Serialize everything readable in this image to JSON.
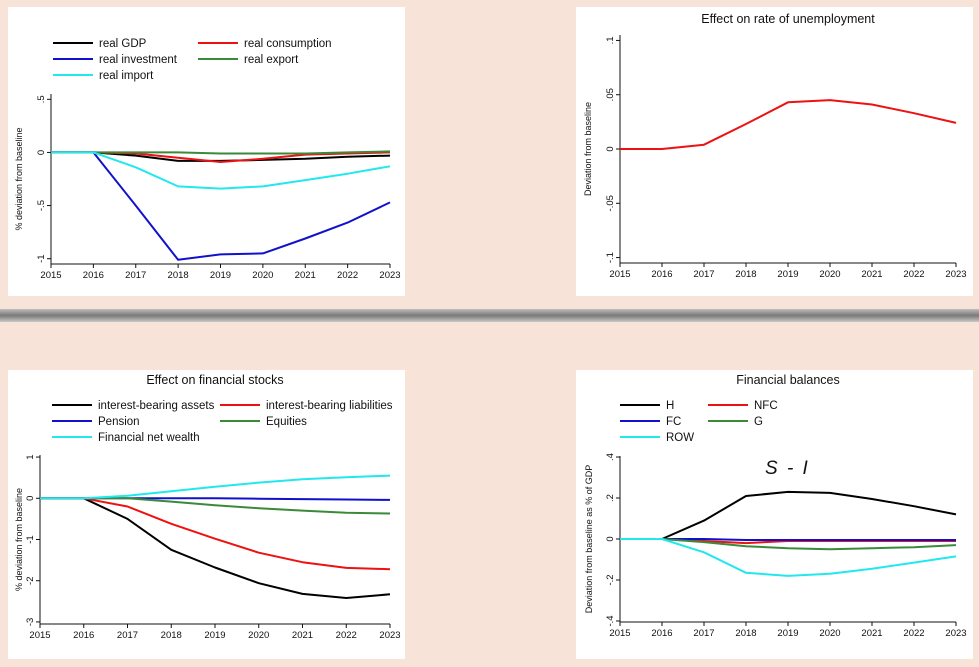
{
  "chart_data": [
    {
      "id": "tl",
      "type": "line",
      "title": "",
      "xlabel": "",
      "ylabel": "% deviation from baseline",
      "x": [
        2015,
        2016,
        2017,
        2018,
        2019,
        2020,
        2021,
        2022,
        2023
      ],
      "xticks": [
        "2015",
        "2016",
        "2017",
        "2018",
        "2019",
        "2020",
        "2021",
        "2022",
        "2023"
      ],
      "ylim": [
        -1.05,
        0.55
      ],
      "yticks": [
        0.5,
        0,
        -0.5,
        -1
      ],
      "ytick_labels": [
        ".5",
        "0",
        "-.5",
        "-1"
      ],
      "legend": {
        "placement": "top",
        "columns": 2
      },
      "series": [
        {
          "name": "real GDP",
          "color": "#000000",
          "values": [
            0,
            0,
            -0.03,
            -0.08,
            -0.08,
            -0.07,
            -0.06,
            -0.04,
            -0.03
          ]
        },
        {
          "name": "real consumption",
          "color": "#ee1111",
          "values": [
            0,
            0,
            -0.01,
            -0.05,
            -0.09,
            -0.06,
            -0.02,
            -0.01,
            0.0
          ]
        },
        {
          "name": "real investment",
          "color": "#1111cc",
          "values": [
            0,
            0,
            -0.5,
            -1.01,
            -0.96,
            -0.95,
            -0.81,
            -0.66,
            -0.47
          ]
        },
        {
          "name": "real export",
          "color": "#3a8a3a",
          "values": [
            0,
            0,
            0.0,
            0.0,
            -0.01,
            -0.01,
            -0.01,
            0.0,
            0.01
          ]
        },
        {
          "name": "real import",
          "color": "#22e8ee",
          "values": [
            0,
            0,
            -0.14,
            -0.32,
            -0.34,
            -0.32,
            -0.26,
            -0.2,
            -0.13
          ]
        }
      ]
    },
    {
      "id": "tr",
      "type": "line",
      "title": "Effect on rate of unemployment",
      "xlabel": "",
      "ylabel": "Deviation from baseline",
      "x": [
        2015,
        2016,
        2017,
        2018,
        2019,
        2020,
        2021,
        2022,
        2023
      ],
      "xticks": [
        "2015",
        "2016",
        "2017",
        "2018",
        "2019",
        "2020",
        "2021",
        "2022",
        "2023"
      ],
      "ylim": [
        -0.105,
        0.105
      ],
      "yticks": [
        0.1,
        0.05,
        0,
        -0.05,
        -0.1
      ],
      "ytick_labels": [
        ".1",
        ".05",
        "0",
        "-.05",
        "-.1"
      ],
      "series": [
        {
          "name": "",
          "color": "#ee1111",
          "values": [
            0,
            0,
            0.004,
            0.023,
            0.043,
            0.045,
            0.041,
            0.033,
            0.024
          ]
        }
      ]
    },
    {
      "id": "bl",
      "type": "line",
      "title": "Effect on financial stocks",
      "xlabel": "",
      "ylabel": "% deviation from baseline",
      "x": [
        2015,
        2016,
        2017,
        2018,
        2019,
        2020,
        2021,
        2022,
        2023
      ],
      "xticks": [
        "2015",
        "2016",
        "2017",
        "2018",
        "2019",
        "2020",
        "2021",
        "2022",
        "2023"
      ],
      "ylim": [
        -3.05,
        1.05
      ],
      "yticks": [
        1,
        0,
        -1,
        -2,
        -3
      ],
      "ytick_labels": [
        "1",
        "0",
        "-1",
        "-2",
        "-3"
      ],
      "legend": {
        "placement": "top",
        "columns": 2
      },
      "series": [
        {
          "name": "interest-bearing assets",
          "color": "#000000",
          "values": [
            0,
            0,
            -0.5,
            -1.25,
            -1.68,
            -2.06,
            -2.32,
            -2.42,
            -2.33
          ]
        },
        {
          "name": "interest-bearing liabilities",
          "color": "#ee1111",
          "values": [
            0,
            0,
            -0.2,
            -0.62,
            -0.98,
            -1.32,
            -1.55,
            -1.69,
            -1.72
          ]
        },
        {
          "name": "Pension",
          "color": "#1111cc",
          "values": [
            0,
            0,
            0.0,
            0.0,
            0.0,
            -0.01,
            -0.02,
            -0.03,
            -0.04
          ]
        },
        {
          "name": "Equities",
          "color": "#3a8a3a",
          "values": [
            0,
            0,
            0.0,
            -0.08,
            -0.17,
            -0.24,
            -0.3,
            -0.35,
            -0.37
          ]
        },
        {
          "name": "Financial net wealth",
          "color": "#22e8ee",
          "values": [
            0,
            0,
            0.06,
            0.17,
            0.28,
            0.38,
            0.46,
            0.51,
            0.55
          ]
        }
      ]
    },
    {
      "id": "br",
      "type": "line",
      "title": "Financial balances",
      "xlabel": "",
      "ylabel": "Deviation from baseline as % of GDP",
      "x": [
        2015,
        2016,
        2017,
        2018,
        2019,
        2020,
        2021,
        2022,
        2023
      ],
      "xticks": [
        "2015",
        "2016",
        "2017",
        "2018",
        "2019",
        "2020",
        "2021",
        "2022",
        "2023"
      ],
      "ylim": [
        -0.405,
        0.405
      ],
      "yticks": [
        0.4,
        0.2,
        0,
        -0.2,
        -0.4
      ],
      "ytick_labels": [
        ".4",
        ".2",
        "0",
        "-.2",
        "-.4"
      ],
      "legend": {
        "placement": "top-left",
        "columns": 2
      },
      "annotation": "S - I",
      "series": [
        {
          "name": "H",
          "color": "#000000",
          "values": [
            0,
            0,
            0.09,
            0.21,
            0.23,
            0.225,
            0.195,
            0.16,
            0.12
          ]
        },
        {
          "name": "NFC",
          "color": "#ee1111",
          "values": [
            0,
            0,
            -0.01,
            -0.02,
            -0.01,
            -0.01,
            -0.01,
            -0.01,
            -0.01
          ]
        },
        {
          "name": "FC",
          "color": "#1111cc",
          "values": [
            0,
            0,
            0.0,
            -0.005,
            -0.005,
            -0.005,
            -0.005,
            -0.005,
            -0.005
          ]
        },
        {
          "name": "G",
          "color": "#3a8a3a",
          "values": [
            0,
            0,
            -0.015,
            -0.035,
            -0.045,
            -0.05,
            -0.045,
            -0.04,
            -0.03
          ]
        },
        {
          "name": "ROW",
          "color": "#22e8ee",
          "values": [
            0,
            0,
            -0.065,
            -0.165,
            -0.18,
            -0.17,
            -0.145,
            -0.115,
            -0.085
          ]
        }
      ]
    }
  ]
}
